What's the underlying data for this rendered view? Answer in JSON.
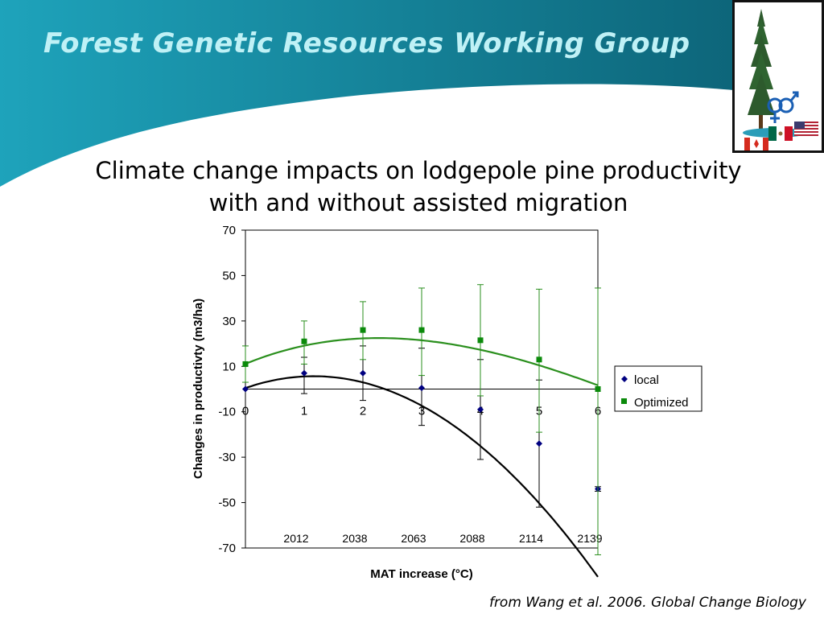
{
  "slide": {
    "title": "Forest Genetic Resources Working Group",
    "heading_line1": "Climate change impacts on lodgepole pine productivity",
    "heading_line2": "with and without assisted migration",
    "source": "from Wang et al. 2006. Global Change Biology"
  },
  "colors": {
    "banner_dark": "#0b5e72",
    "banner_light": "#1ea3bb",
    "title_text": "#bff1f6",
    "local": "#000080",
    "optimized": "#0b8a0b",
    "local_curve": "#000000",
    "optimized_curve": "#2a8f1d"
  },
  "logo": {
    "icon": "tree-with-gender-symbols-and-flags"
  },
  "chart_data": {
    "type": "line",
    "xlabel": "MAT increase (°C)",
    "ylabel": "Changes in productivty (m3/ha)",
    "xlim": [
      0,
      6
    ],
    "ylim": [
      -70,
      70
    ],
    "ytick_step": 20,
    "x": [
      0,
      1,
      2,
      3,
      4,
      5,
      6
    ],
    "x_tick_labels": [
      "0",
      "1",
      "2",
      "3",
      "4",
      "5",
      "6"
    ],
    "year_labels": [
      {
        "x": 1,
        "label": "2012"
      },
      {
        "x": 2,
        "label": "2038"
      },
      {
        "x": 3,
        "label": "2063"
      },
      {
        "x": 4,
        "label": "2088"
      },
      {
        "x": 5,
        "label": "2114"
      },
      {
        "x": 6,
        "label": "2139"
      }
    ],
    "series": [
      {
        "name": "local",
        "marker": "diamond",
        "values": [
          0,
          7,
          7,
          0.5,
          -9,
          -24,
          -44
        ],
        "error_low": [
          0,
          -2,
          -5,
          -16,
          -31,
          -52,
          -45
        ],
        "error_high": [
          0,
          14,
          19,
          18,
          13,
          4,
          -43
        ],
        "fit": [
          0.42,
          9.06,
          -3.94,
          0.02
        ]
      },
      {
        "name": "Optimized",
        "marker": "square",
        "values": [
          11,
          21,
          26,
          26,
          21.5,
          13,
          0
        ],
        "error_low": [
          3,
          11,
          13,
          6,
          -3,
          -19,
          -73
        ],
        "error_high": [
          19,
          30,
          38.5,
          44.5,
          46,
          44,
          44.5
        ],
        "fit": [
          11.1,
          10.62,
          -2.74,
          0.118
        ]
      }
    ],
    "legend": "right",
    "grid": false
  }
}
